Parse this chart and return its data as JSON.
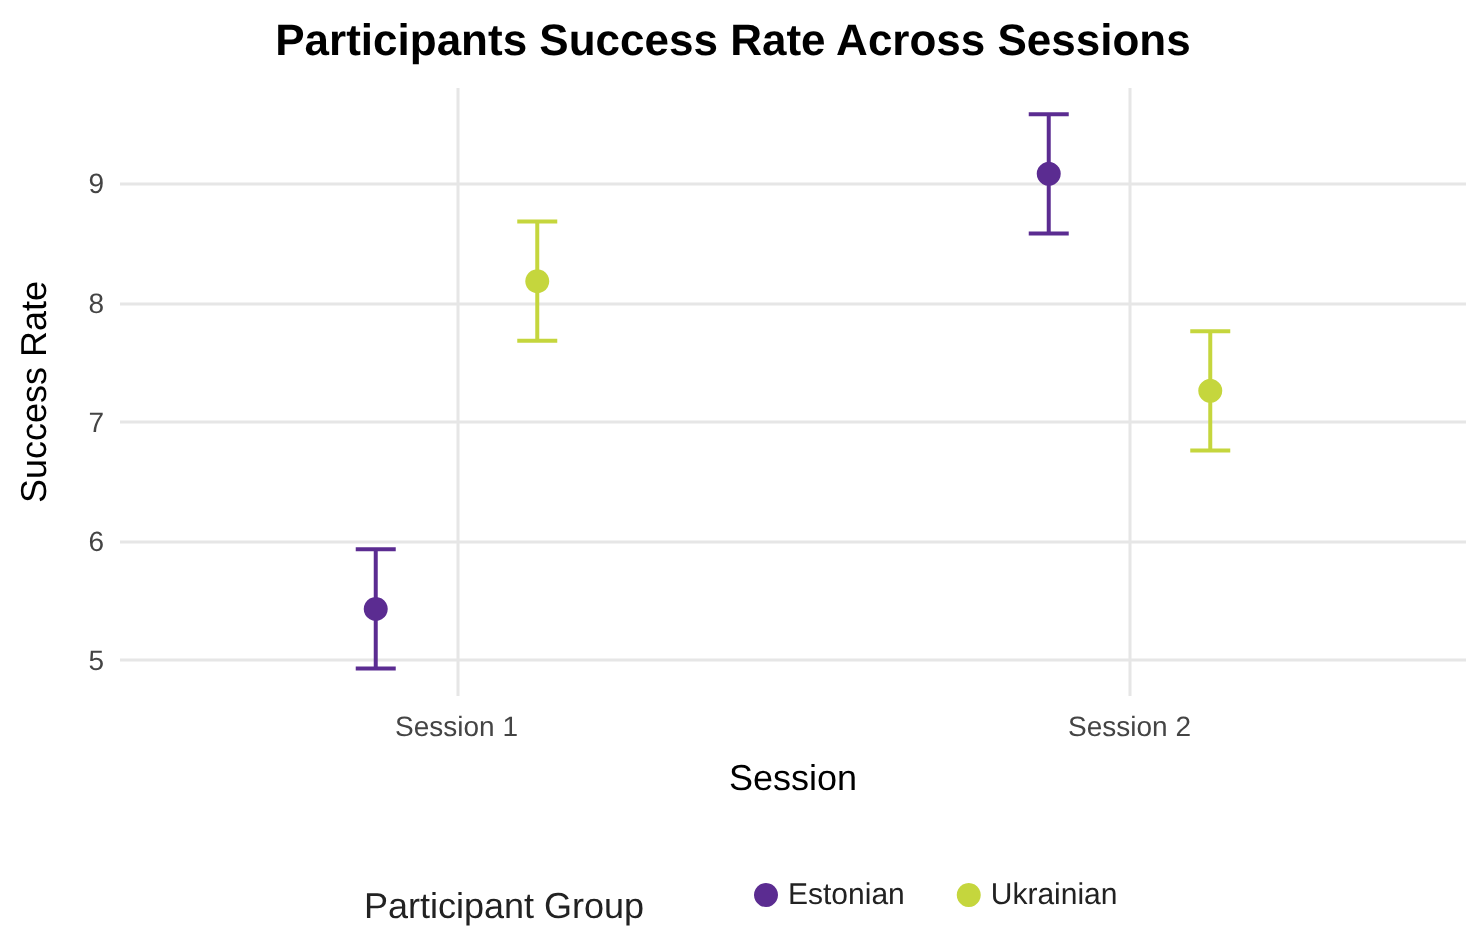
{
  "chart_data": {
    "type": "scatter",
    "title": "Participants Success Rate Across Sessions",
    "xlabel": "Session",
    "ylabel": "Success Rate",
    "legend_title": "Participant Group",
    "categories": [
      "Session 1",
      "Session 2"
    ],
    "series": [
      {
        "name": "Estonian",
        "color": "#5b2c91",
        "values": [
          5.43,
          9.08
        ],
        "errors": [
          0.5,
          0.5
        ]
      },
      {
        "name": "Ukrainian",
        "color": "#c5d63d",
        "values": [
          8.18,
          7.26
        ],
        "errors": [
          0.5,
          0.5
        ]
      }
    ],
    "ylim": [
      4.7,
      9.8
    ],
    "yticks": [
      5,
      6,
      7,
      8,
      9
    ],
    "grid": true,
    "legend": "bottom",
    "marker": "circle"
  }
}
